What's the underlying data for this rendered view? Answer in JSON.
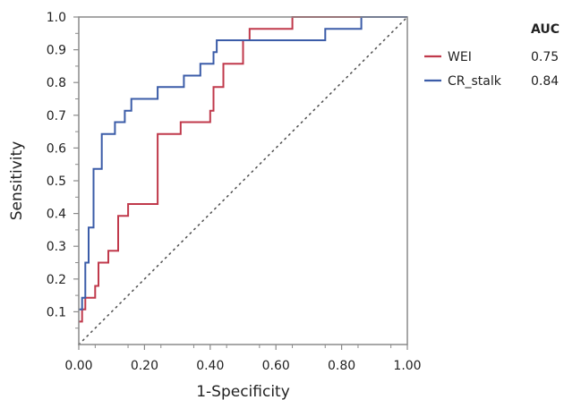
{
  "chart_data": {
    "type": "line",
    "xlabel": "1-Specificity",
    "ylabel": "Sensitivity",
    "xlim": [
      0,
      1
    ],
    "ylim": [
      0,
      1
    ],
    "x_ticks": [
      "0.00",
      "0.20",
      "0.40",
      "0.60",
      "0.80",
      "1.00"
    ],
    "y_ticks": [
      "0.1",
      "0.2",
      "0.3",
      "0.4",
      "0.5",
      "0.6",
      "0.7",
      "0.8",
      "0.9",
      "1.0"
    ],
    "reference_line": "dotted diagonal",
    "grid": false,
    "legend_placement": "right",
    "legend_header": "AUC",
    "series": [
      {
        "name": "WEI",
        "auc": "0.75",
        "color": "#c0394b",
        "points": [
          [
            0.0,
            0.07
          ],
          [
            0.01,
            0.07
          ],
          [
            0.01,
            0.107
          ],
          [
            0.02,
            0.107
          ],
          [
            0.02,
            0.143
          ],
          [
            0.05,
            0.143
          ],
          [
            0.05,
            0.179
          ],
          [
            0.06,
            0.179
          ],
          [
            0.06,
            0.25
          ],
          [
            0.09,
            0.25
          ],
          [
            0.09,
            0.286
          ],
          [
            0.12,
            0.286
          ],
          [
            0.12,
            0.393
          ],
          [
            0.15,
            0.393
          ],
          [
            0.15,
            0.429
          ],
          [
            0.24,
            0.429
          ],
          [
            0.24,
            0.643
          ],
          [
            0.31,
            0.643
          ],
          [
            0.31,
            0.679
          ],
          [
            0.4,
            0.679
          ],
          [
            0.4,
            0.714
          ],
          [
            0.41,
            0.714
          ],
          [
            0.41,
            0.786
          ],
          [
            0.44,
            0.786
          ],
          [
            0.44,
            0.857
          ],
          [
            0.5,
            0.857
          ],
          [
            0.5,
            0.929
          ],
          [
            0.52,
            0.929
          ],
          [
            0.52,
            0.964
          ],
          [
            0.65,
            0.964
          ],
          [
            0.65,
            1.0
          ],
          [
            1.0,
            1.0
          ]
        ]
      },
      {
        "name": "CR_stalk",
        "auc": "0.84",
        "color": "#3b5ca8",
        "points": [
          [
            0.0,
            0.107
          ],
          [
            0.01,
            0.107
          ],
          [
            0.01,
            0.143
          ],
          [
            0.02,
            0.143
          ],
          [
            0.02,
            0.25
          ],
          [
            0.03,
            0.25
          ],
          [
            0.03,
            0.357
          ],
          [
            0.045,
            0.357
          ],
          [
            0.045,
            0.536
          ],
          [
            0.07,
            0.536
          ],
          [
            0.07,
            0.643
          ],
          [
            0.11,
            0.643
          ],
          [
            0.11,
            0.679
          ],
          [
            0.14,
            0.679
          ],
          [
            0.14,
            0.714
          ],
          [
            0.16,
            0.714
          ],
          [
            0.16,
            0.75
          ],
          [
            0.24,
            0.75
          ],
          [
            0.24,
            0.786
          ],
          [
            0.32,
            0.786
          ],
          [
            0.32,
            0.821
          ],
          [
            0.37,
            0.821
          ],
          [
            0.37,
            0.857
          ],
          [
            0.41,
            0.857
          ],
          [
            0.41,
            0.893
          ],
          [
            0.42,
            0.893
          ],
          [
            0.42,
            0.929
          ],
          [
            0.75,
            0.929
          ],
          [
            0.75,
            0.964
          ],
          [
            0.86,
            0.964
          ],
          [
            0.86,
            1.0
          ],
          [
            1.0,
            1.0
          ]
        ]
      }
    ]
  }
}
